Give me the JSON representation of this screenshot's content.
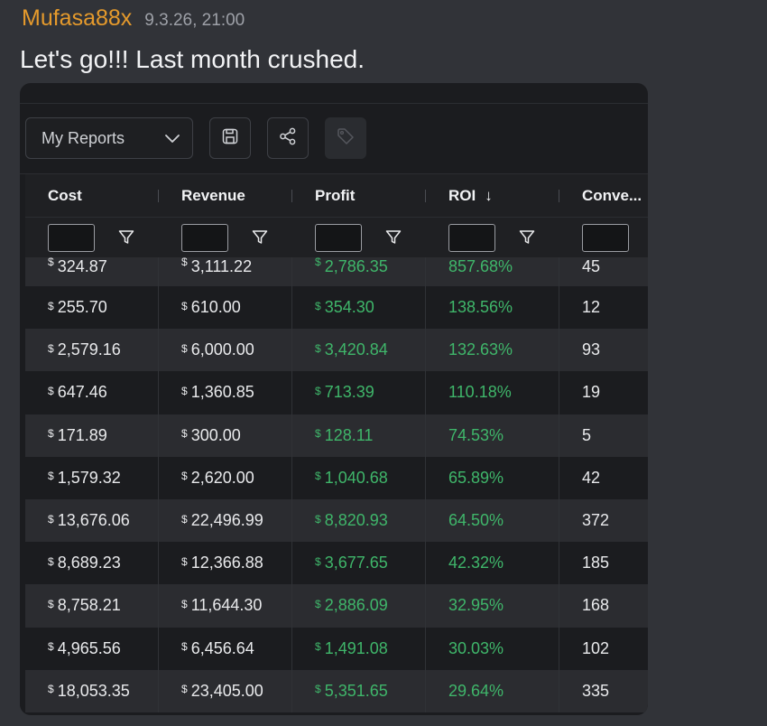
{
  "message": {
    "username": "Mufasa88x",
    "timestamp": "9.3.26, 21:00",
    "text": "Let's go!!! Last month crushed."
  },
  "toolbar": {
    "report_select_value": "My Reports",
    "icons": [
      "save-icon",
      "share-icon",
      "tag-icon"
    ]
  },
  "colors": {
    "username": "#e59a2c",
    "positive": "#3fb66a"
  },
  "table": {
    "columns": [
      {
        "label": "Cost"
      },
      {
        "label": "Revenue"
      },
      {
        "label": "Profit"
      },
      {
        "label": "ROI",
        "sort": "↓"
      },
      {
        "label": "Conve..."
      }
    ],
    "currency_symbol": "$",
    "rows": [
      {
        "cost": "324.87",
        "revenue": "3,111.22",
        "profit": "2,786.35",
        "roi": "857.68%",
        "conv": "45"
      },
      {
        "cost": "255.70",
        "revenue": "610.00",
        "profit": "354.30",
        "roi": "138.56%",
        "conv": "12"
      },
      {
        "cost": "2,579.16",
        "revenue": "6,000.00",
        "profit": "3,420.84",
        "roi": "132.63%",
        "conv": "93"
      },
      {
        "cost": "647.46",
        "revenue": "1,360.85",
        "profit": "713.39",
        "roi": "110.18%",
        "conv": "19"
      },
      {
        "cost": "171.89",
        "revenue": "300.00",
        "profit": "128.11",
        "roi": "74.53%",
        "conv": "5"
      },
      {
        "cost": "1,579.32",
        "revenue": "2,620.00",
        "profit": "1,040.68",
        "roi": "65.89%",
        "conv": "42"
      },
      {
        "cost": "13,676.06",
        "revenue": "22,496.99",
        "profit": "8,820.93",
        "roi": "64.50%",
        "conv": "372"
      },
      {
        "cost": "8,689.23",
        "revenue": "12,366.88",
        "profit": "3,677.65",
        "roi": "42.32%",
        "conv": "185"
      },
      {
        "cost": "8,758.21",
        "revenue": "11,644.30",
        "profit": "2,886.09",
        "roi": "32.95%",
        "conv": "168"
      },
      {
        "cost": "4,965.56",
        "revenue": "6,456.64",
        "profit": "1,491.08",
        "roi": "30.03%",
        "conv": "102"
      },
      {
        "cost": "18,053.35",
        "revenue": "23,405.00",
        "profit": "5,351.65",
        "roi": "29.64%",
        "conv": "335"
      }
    ]
  }
}
